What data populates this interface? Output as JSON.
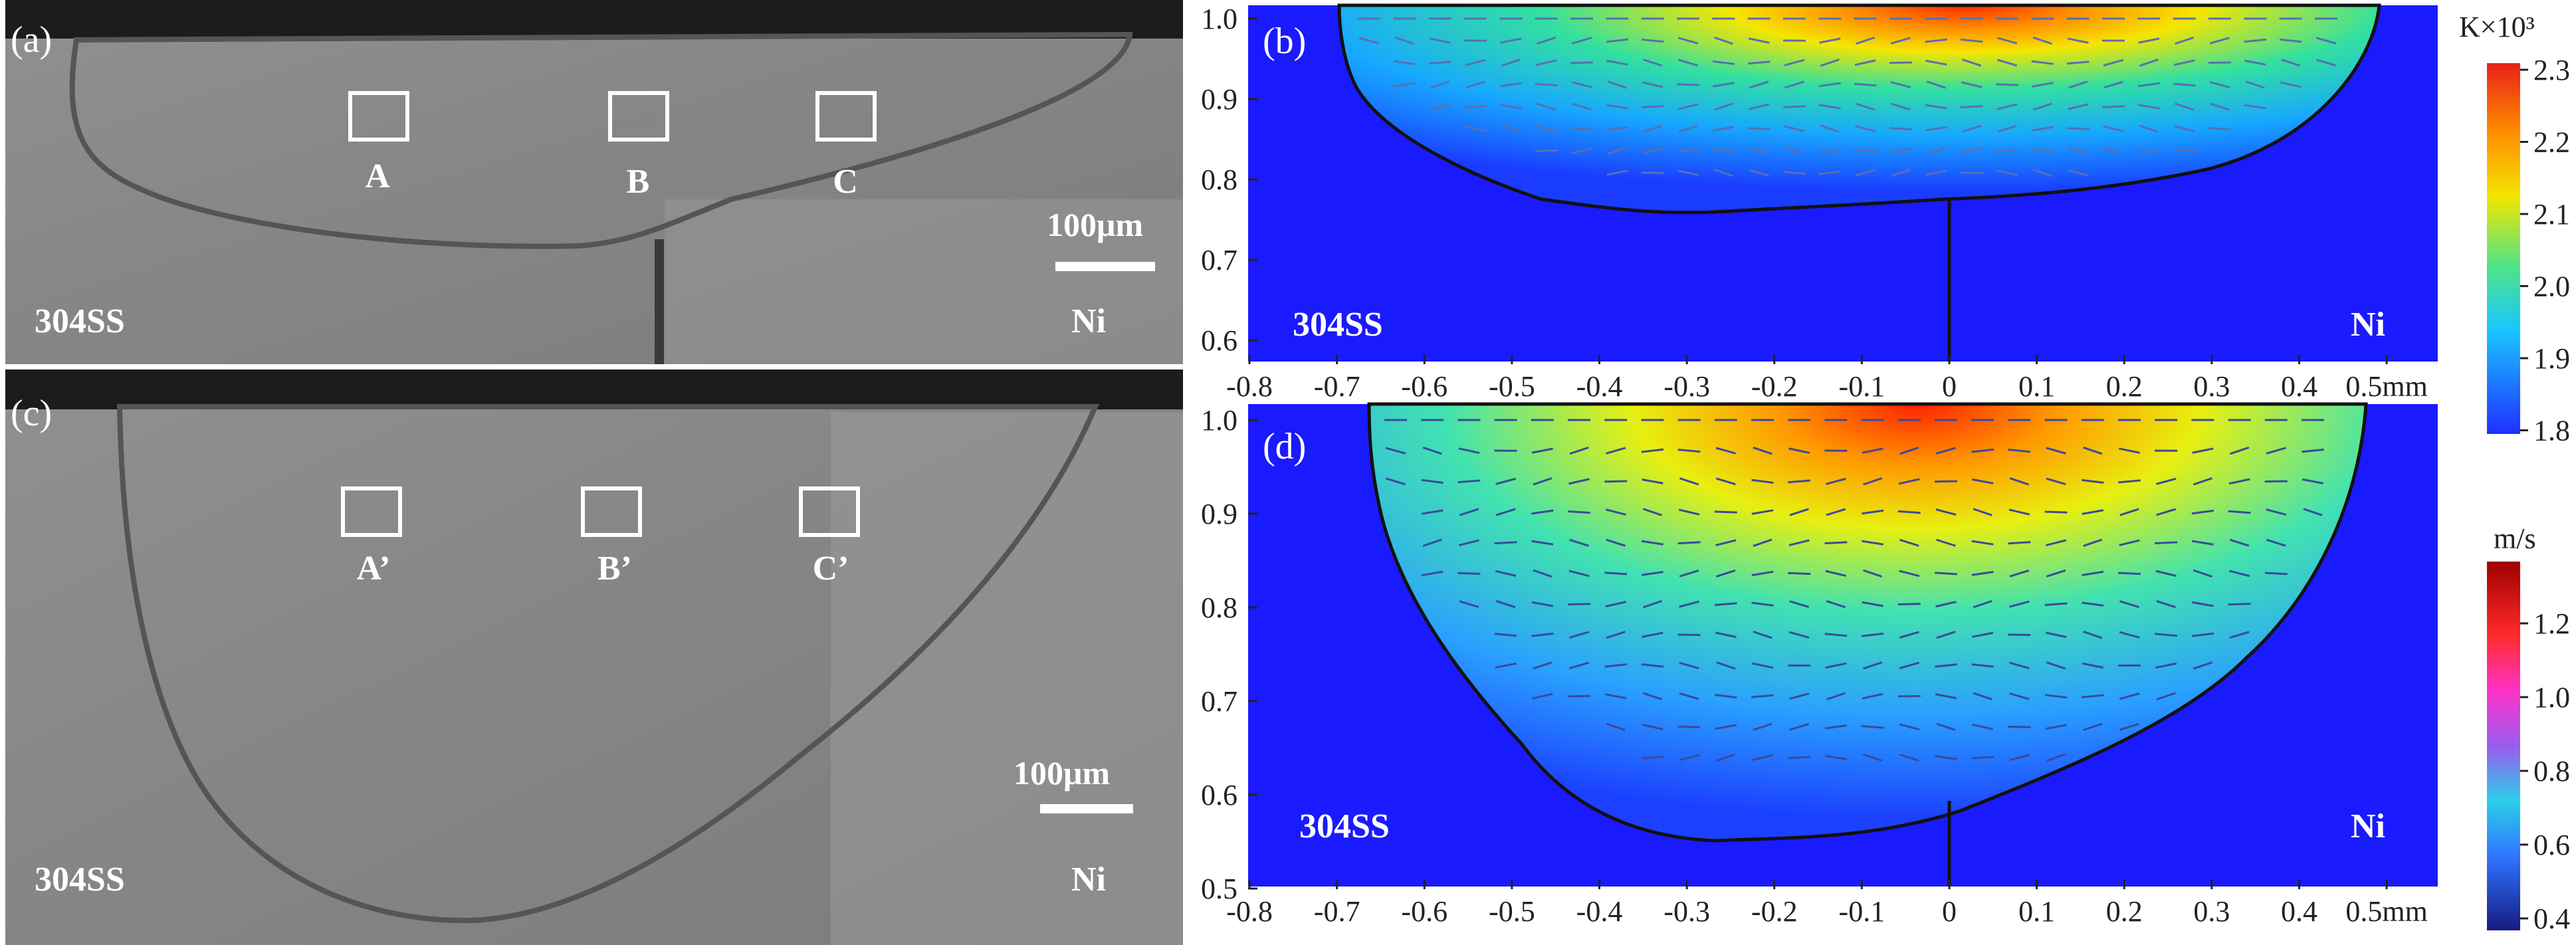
{
  "panels": {
    "a": {
      "tag": "(a)",
      "left_label": "304SS",
      "right_label": "Ni",
      "scale_label": "100μm",
      "boxes": [
        "A",
        "B",
        "C"
      ]
    },
    "b": {
      "tag": "(b)",
      "left_label": "304SS",
      "right_label": "Ni"
    },
    "c": {
      "tag": "(c)",
      "left_label": "304SS",
      "right_label": "Ni",
      "scale_label": "100μm",
      "boxes": [
        "A’",
        "B’",
        "C’"
      ]
    },
    "d": {
      "tag": "(d)",
      "left_label": "304SS",
      "right_label": "Ni"
    }
  },
  "axes": {
    "x_ticks": [
      "-0.8",
      "-0.7",
      "-0.6",
      "-0.5",
      "-0.4",
      "-0.3",
      "-0.2",
      "-0.1",
      "0",
      "0.1",
      "0.2",
      "0.3",
      "0.4",
      "0.5mm"
    ],
    "b_y_ticks": [
      "1.0",
      "0.9",
      "0.8",
      "0.7",
      "0.6"
    ],
    "d_y_ticks": [
      "1.0",
      "0.9",
      "0.8",
      "0.7",
      "0.6",
      "0.5"
    ]
  },
  "colorbars": {
    "temperature": {
      "unit": "K×10³",
      "ticks": [
        "2.3",
        "2.2",
        "2.1",
        "2.0",
        "1.9",
        "1.8"
      ]
    },
    "velocity": {
      "unit": "m/s",
      "ticks": [
        "1.2",
        "1.0",
        "0.8",
        "0.6",
        "0.4"
      ]
    }
  },
  "colors": {
    "sem_gray": "#8b8b8b",
    "boundary_line": "#555555",
    "sim_background": "#1a1aff"
  }
}
